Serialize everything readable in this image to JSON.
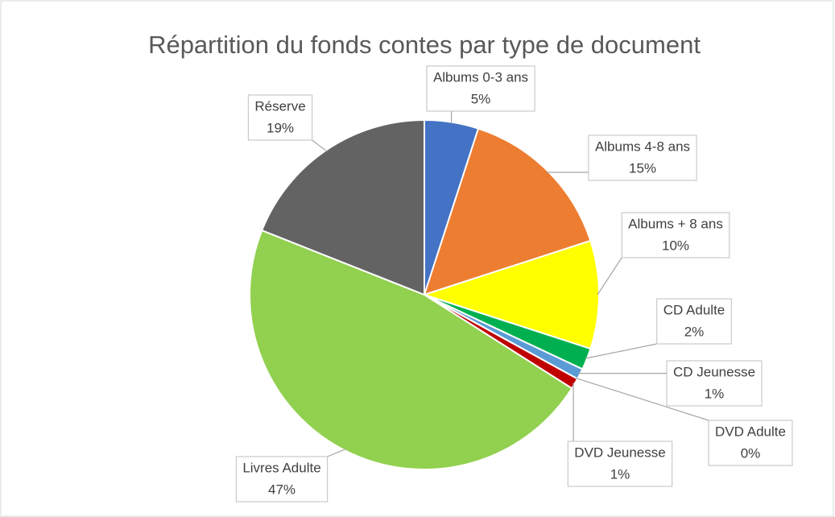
{
  "chart_data": {
    "type": "pie",
    "title": "Répartition du fonds contes par type de  document",
    "categories": [
      "Albums 0-3 ans",
      "Albums 4-8 ans",
      "Albums + 8 ans",
      "CD Adulte",
      "CD Jeunesse",
      "DVD Adulte",
      "DVD Jeunesse",
      "Livres Adulte",
      "Réserve"
    ],
    "values": [
      5,
      15,
      10,
      2,
      1,
      0,
      1,
      47,
      19
    ],
    "value_labels": [
      "5%",
      "15%",
      "10%",
      "2%",
      "1%",
      "0%",
      "1%",
      "47%",
      "19%"
    ],
    "colors": [
      "#4472c4",
      "#ed7d31",
      "#ffff00",
      "#00b050",
      "#5b9bd5",
      "#1f4e79",
      "#c00000",
      "#92d050",
      "#636363"
    ]
  }
}
